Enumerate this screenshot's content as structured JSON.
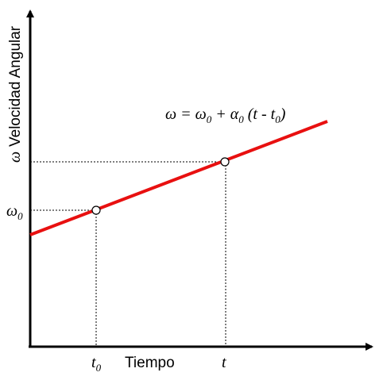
{
  "y_axis_title": "Velocidad Angular",
  "y_axis_symbol": "ω",
  "x_axis_title": "Tiempo",
  "ticks": {
    "omega0_symbol": "ω",
    "omega0_sub": "0",
    "t0_symbol": "t",
    "t0_sub": "0",
    "t_symbol": "t"
  },
  "equation": {
    "lhs": "ω = ω",
    "sub_omega0": "0",
    "plus_alpha": " + α",
    "sub_alpha0": "0",
    "paren_open": " (t - t",
    "sub_t0": "0",
    "paren_close": ")"
  },
  "colors": {
    "line": "#e81010",
    "axis": "#000000",
    "guides": "#000000",
    "points_fill": "#ffffff"
  }
}
